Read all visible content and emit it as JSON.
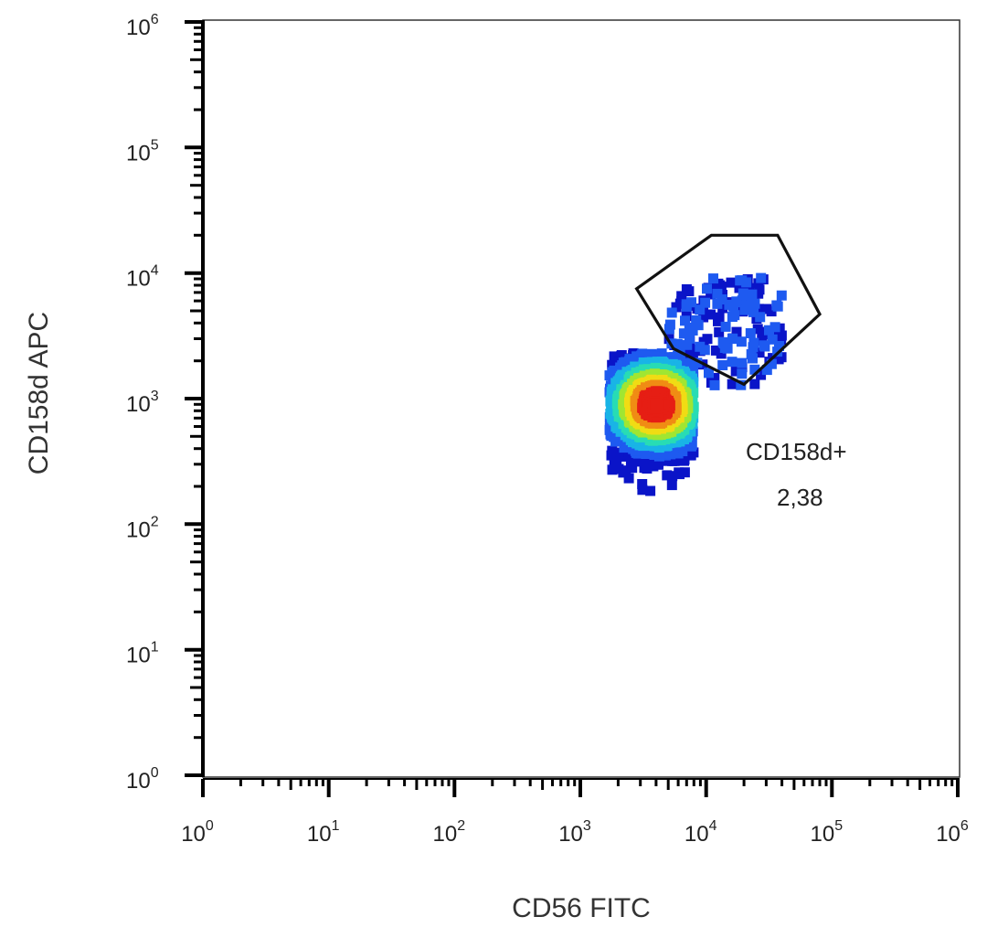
{
  "chart_data": {
    "type": "scatter",
    "subtype": "flow-cytometry-density-dot-plot",
    "xlabel": "CD56 FITC",
    "ylabel": "CD158d APC",
    "x_scale": "log",
    "y_scale": "log",
    "xlim": [
      1,
      1000000
    ],
    "ylim": [
      1,
      1000000
    ],
    "x_ticks": [
      1,
      10,
      100,
      1000,
      10000,
      100000,
      1000000
    ],
    "y_ticks": [
      1,
      10,
      100,
      1000,
      10000,
      100000,
      1000000
    ],
    "tick_base": "10",
    "tick_exponents": [
      "0",
      "1",
      "2",
      "3",
      "4",
      "5",
      "6"
    ],
    "grid": false,
    "color_scale": [
      "#0a14c8",
      "#1e5af0",
      "#19b4e6",
      "#28dcb4",
      "#a0e632",
      "#f0dc14",
      "#f08c14",
      "#e61e14"
    ],
    "population": {
      "center": [
        4000,
        900
      ],
      "spread_log10": [
        0.3,
        0.28
      ],
      "x_range": [
        1700,
        8000
      ],
      "y_range": [
        100,
        2300
      ]
    },
    "gate": {
      "name": "CD158d+",
      "percentage": "2,38",
      "vertices": [
        [
          11000,
          20000
        ],
        [
          37000,
          20000
        ],
        [
          80000,
          4700
        ],
        [
          20000,
          1300
        ],
        [
          5500,
          2500
        ],
        [
          2800,
          7500
        ]
      ]
    },
    "gated_events_range": {
      "x": [
        4000,
        40000
      ],
      "y": [
        1200,
        15000
      ]
    }
  }
}
